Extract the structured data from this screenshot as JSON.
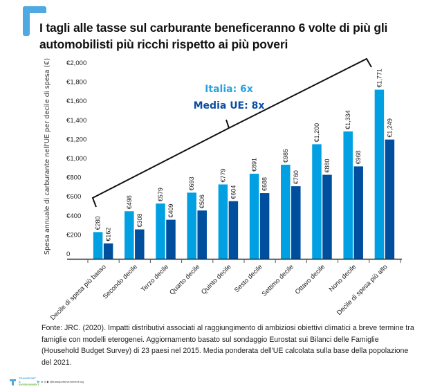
{
  "header": {
    "title": "I tagli alle tasse sul carburante beneficeranno 6 volte di più gli automobilisti più ricchi rispetto ai più poveri"
  },
  "annotation": {
    "italy_label": "Italia: 6x",
    "eu_label": "Media UE: 8x"
  },
  "colors": {
    "italy": "#00a0e3",
    "eu": "#004f9f",
    "accent": "#4fa9e2",
    "italy_text": "#2ba3e0",
    "eu_text": "#0a4ea0"
  },
  "chart_data": {
    "type": "bar",
    "title": "I tagli alle tasse sul carburante beneficeranno 6 volte di più gli automobilisti più ricchi rispetto ai più poveri",
    "xlabel": "",
    "ylabel": "Spesa annuale di carburante nell'UE per decile di spesa (€)",
    "ylim": [
      0,
      2000
    ],
    "yticks": [
      0,
      200,
      400,
      600,
      800,
      1000,
      1200,
      1400,
      1600,
      1800,
      2000
    ],
    "ytick_labels": [
      "0",
      "€200",
      "€400",
      "€600",
      "€800",
      "€1,000",
      "€1,200",
      "€1,400",
      "€1,600",
      "€1,800",
      "€2,000"
    ],
    "grid": false,
    "legend": "none (annotated in chart: Italia light blue, Media UE dark blue)",
    "categories": [
      "Decile di spesa più basso",
      "Secondo decile",
      "Terzo decile",
      "Quarto decile",
      "Quinto decile",
      "Sesto decile",
      "Settimo decile",
      "Ottavo decile",
      "Nono decile",
      "Decile di spesa più alto"
    ],
    "series": [
      {
        "name": "Italia",
        "values": [
          280,
          498,
          579,
          693,
          779,
          891,
          985,
          1200,
          1334,
          1771
        ],
        "labels": [
          "€280",
          "€498",
          "€579",
          "€693",
          "€779",
          "€891",
          "€985",
          "€1,200",
          "€1,334",
          "€1,771"
        ]
      },
      {
        "name": "Media UE",
        "values": [
          162,
          308,
          409,
          506,
          604,
          688,
          760,
          880,
          968,
          1249
        ],
        "labels": [
          "€162",
          "€308",
          "€409",
          "€506",
          "€604",
          "€688",
          "€760",
          "€880",
          "€968",
          "€1,249"
        ]
      }
    ],
    "annotations": [
      "Italia: 6x",
      "Media UE: 8x"
    ]
  },
  "source": {
    "text": "Fonte: JRC. (2020). Impatti distributivi associati al raggiungimento di ambiziosi obiettivi climatici a breve termine tra famiglie con modelli eterogenei. Aggiornamento basato sul sondaggio Eurostat sui Bilanci delle Famiglie (Household Budget Survey) di 23 paesi nel 2015. Media ponderata dell'UE calcolata sulla base della popolazione del 2021."
  },
  "footer": {
    "brand_line1": "TRANSPORT &",
    "brand_line2": "ENVIRONMENT",
    "socials": "🐦 in ◎ ▶ @transportenvironment.org"
  }
}
